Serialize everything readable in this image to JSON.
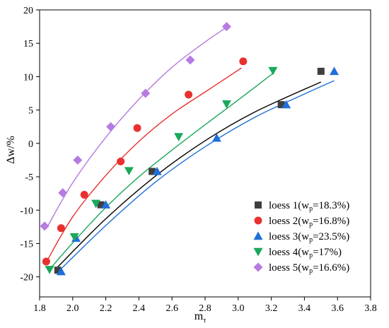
{
  "chart_data": {
    "type": "scatter",
    "xlabel": "m",
    "xlabel_sub": "τ",
    "ylabel": "Δw/%",
    "xlim": [
      1.8,
      3.8
    ],
    "ylim": [
      -23,
      20
    ],
    "xticks": [
      "1.8",
      "2.0",
      "2.2",
      "2.4",
      "2.6",
      "2.8",
      "3.0",
      "3.2",
      "3.4",
      "3.6",
      "3.8"
    ],
    "yticks": [
      "20",
      "15",
      "10",
      "5",
      "0",
      "-5",
      "-10",
      "-15",
      "-20"
    ],
    "legend_position": "bottom-right",
    "series": [
      {
        "name": "loess 1(w",
        "name_sub": "p",
        "name_rest": "=18.3%)",
        "marker": "square",
        "color": "#3f3f3f",
        "fit_color": "#000000",
        "points": [
          [
            1.91,
            -19.0
          ],
          [
            2.17,
            -9.2
          ],
          [
            2.48,
            -4.2
          ],
          [
            3.26,
            5.8
          ],
          [
            3.5,
            10.8
          ]
        ],
        "fit": [
          [
            1.91,
            -18.5
          ],
          [
            2.2,
            -11.3
          ],
          [
            2.5,
            -4.9
          ],
          [
            2.8,
            0.4
          ],
          [
            3.1,
            4.7
          ],
          [
            3.5,
            9.2
          ]
        ]
      },
      {
        "name": "loess 2(w",
        "name_sub": "p",
        "name_rest": "=16.8%)",
        "marker": "circle",
        "color": "#e8312f",
        "fit_color": "#e8312f",
        "points": [
          [
            1.84,
            -17.7
          ],
          [
            1.93,
            -12.7
          ],
          [
            2.07,
            -7.7
          ],
          [
            2.29,
            -2.7
          ],
          [
            2.39,
            2.3
          ],
          [
            2.7,
            7.3
          ],
          [
            3.03,
            12.3
          ]
        ],
        "fit": [
          [
            1.84,
            -17.8
          ],
          [
            2.0,
            -11.0
          ],
          [
            2.2,
            -4.8
          ],
          [
            2.4,
            0.3
          ],
          [
            2.6,
            4.4
          ],
          [
            2.8,
            7.7
          ],
          [
            3.02,
            11.3
          ]
        ]
      },
      {
        "name": "loess 3(w",
        "name_sub": "p",
        "name_rest": "=23.5%)",
        "marker": "triangle-up",
        "color": "#1f6fd8",
        "fit_color": "#1f6fd8",
        "points": [
          [
            1.93,
            -19.2
          ],
          [
            2.02,
            -14.2
          ],
          [
            2.2,
            -9.2
          ],
          [
            2.51,
            -4.2
          ],
          [
            2.87,
            0.8
          ],
          [
            3.29,
            5.8
          ],
          [
            3.58,
            10.8
          ]
        ],
        "fit": [
          [
            1.93,
            -18.8
          ],
          [
            2.2,
            -12.3
          ],
          [
            2.5,
            -5.8
          ],
          [
            2.8,
            -0.5
          ],
          [
            3.1,
            3.9
          ],
          [
            3.4,
            7.4
          ],
          [
            3.58,
            9.4
          ]
        ]
      },
      {
        "name": "loess 4(w",
        "name_sub": "p",
        "name_rest": "=17%)",
        "marker": "triangle-down",
        "color": "#1aa85a",
        "fit_color": "#1aa85a",
        "points": [
          [
            1.86,
            -18.9
          ],
          [
            2.01,
            -14.0
          ],
          [
            2.14,
            -9.0
          ],
          [
            2.34,
            -4.1
          ],
          [
            2.64,
            1.0
          ],
          [
            2.93,
            5.9
          ],
          [
            3.21,
            10.9
          ]
        ],
        "fit": [
          [
            1.86,
            -18.9
          ],
          [
            2.0,
            -14.9
          ],
          [
            2.2,
            -9.6
          ],
          [
            2.4,
            -5.0
          ],
          [
            2.6,
            -1.0
          ],
          [
            2.8,
            2.8
          ],
          [
            3.0,
            6.5
          ],
          [
            3.21,
            10.5
          ]
        ]
      },
      {
        "name": "loess 5(w",
        "name_sub": "p",
        "name_rest": "=16.6%)",
        "marker": "diamond",
        "color": "#b57be0",
        "fit_color": "#b57be0",
        "points": [
          [
            1.83,
            -12.4
          ],
          [
            1.94,
            -7.4
          ],
          [
            2.03,
            -2.5
          ],
          [
            2.23,
            2.5
          ],
          [
            2.44,
            7.5
          ],
          [
            2.71,
            12.5
          ],
          [
            2.93,
            17.5
          ]
        ],
        "fit": [
          [
            1.84,
            -12.8
          ],
          [
            2.0,
            -5.9
          ],
          [
            2.2,
            0.9
          ],
          [
            2.4,
            6.6
          ],
          [
            2.6,
            11.4
          ],
          [
            2.8,
            15.2
          ],
          [
            2.93,
            17.4
          ]
        ]
      }
    ]
  }
}
